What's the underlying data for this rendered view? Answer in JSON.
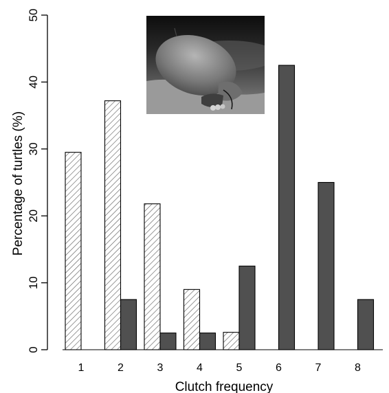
{
  "chart_data": {
    "type": "bar",
    "title": "",
    "xlabel": "Clutch frequency",
    "ylabel": "Percentage of turtles (%)",
    "ylim": [
      0,
      50
    ],
    "yticks": [
      0,
      10,
      20,
      30,
      40,
      50
    ],
    "categories": [
      "1",
      "2",
      "3",
      "4",
      "5",
      "6",
      "7",
      "8"
    ],
    "grid": false,
    "legend": "none",
    "series": [
      {
        "values": [
          29.5,
          37.2,
          21.8,
          9.0,
          2.6,
          0,
          0,
          0
        ],
        "color": "#ffffff",
        "pattern": "diagonal-hatch"
      },
      {
        "values": [
          0,
          7.5,
          2.5,
          2.5,
          12.5,
          42.5,
          25.0,
          7.5
        ],
        "color": "#505050",
        "pattern": "solid"
      }
    ],
    "inset": {
      "kind": "photo",
      "depicts": "nesting sea turtle with eggs"
    }
  }
}
